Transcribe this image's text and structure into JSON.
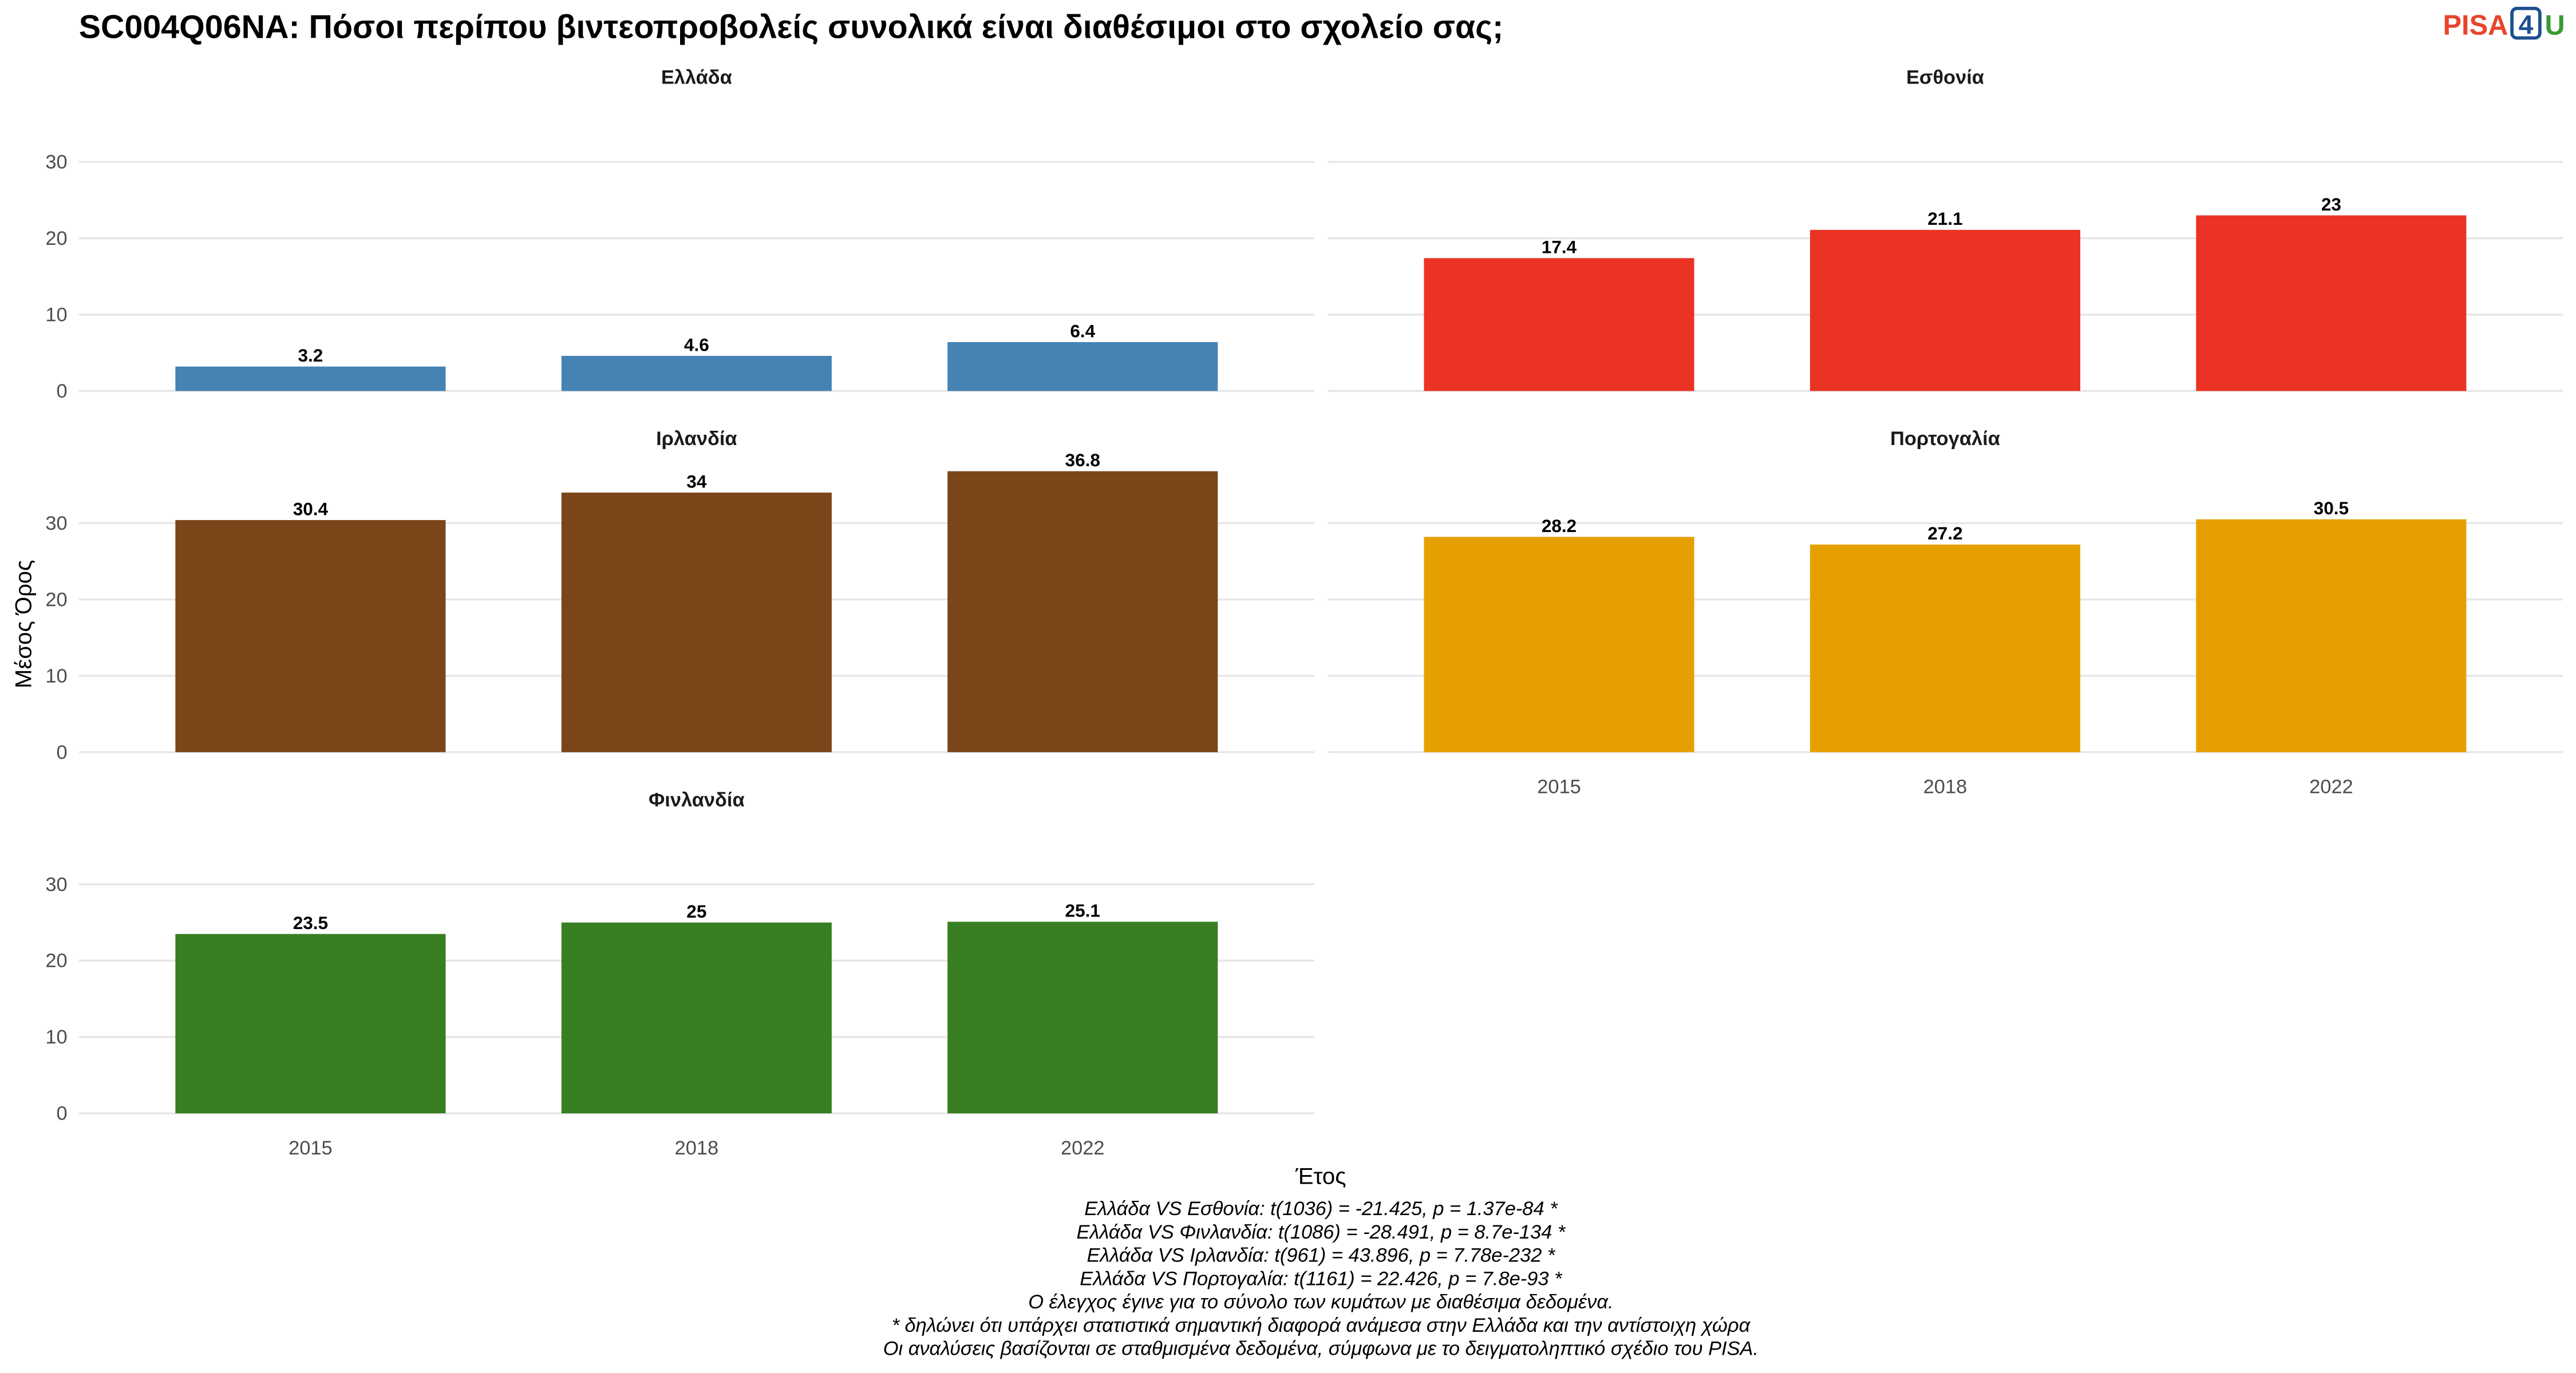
{
  "title": "SC004Q06NA: Πόσοι περίπου βιντεοπροβολείς συνολικά είναι διαθέσιμοι στο σχολείο σας;",
  "logo": {
    "part1": "PISA",
    "part2": "4",
    "part3": "U"
  },
  "y_label": "Μέσος Όρος",
  "x_label": "Έτος",
  "notes": [
    "Ελλάδα VS Εσθονία: t(1036) = -21.425, p = 1.37e-84 *",
    "Ελλάδα VS Φινλανδία: t(1086) = -28.491, p = 8.7e-134 *",
    "Ελλάδα VS Ιρλανδία: t(961) = 43.896, p = 7.78e-232 *",
    "Ελλάδα VS Πορτογαλία: t(1161) = 22.426, p = 7.8e-93 *",
    "Ο έλεγχος έγινε για το σύνολο των κυμάτων με διαθέσιμα δεδομένα.",
    "* δηλώνει ότι υπάρχει στατιστικά σημαντική διαφορά ανάμεσα στην Ελλάδα και την αντίστοιχη χώρα",
    "Οι αναλύσεις βασίζονται σε σταθμισμένα δεδομένα, σύμφωνα με το δειγματοληπτικό σχέδιο του PISA."
  ],
  "chart_data": [
    {
      "type": "bar",
      "title": "Ελλάδα",
      "categories": [
        "2015",
        "2018",
        "2022"
      ],
      "values": [
        3.2,
        4.6,
        6.4
      ],
      "color": "#4682b4",
      "ylim": [
        0,
        38.6
      ],
      "yticks": [
        0,
        10,
        20,
        30
      ],
      "grid": true
    },
    {
      "type": "bar",
      "title": "Εσθονία",
      "categories": [
        "2015",
        "2018",
        "2022"
      ],
      "values": [
        17.4,
        21.1,
        23
      ],
      "color": "#ea3324",
      "ylim": [
        0,
        38.6
      ],
      "yticks": [
        0,
        10,
        20,
        30
      ],
      "grid": true
    },
    {
      "type": "bar",
      "title": "Ιρλανδία",
      "categories": [
        "2015",
        "2018",
        "2022"
      ],
      "values": [
        30.4,
        34,
        36.8
      ],
      "color": "#7a4518",
      "ylim": [
        0,
        38.6
      ],
      "yticks": [
        0,
        10,
        20,
        30
      ],
      "grid": true
    },
    {
      "type": "bar",
      "title": "Πορτογαλία",
      "categories": [
        "2015",
        "2018",
        "2022"
      ],
      "values": [
        28.2,
        27.2,
        30.5
      ],
      "color": "#e5a000",
      "ylim": [
        0,
        38.6
      ],
      "yticks": [
        0,
        10,
        20,
        30
      ],
      "grid": true
    },
    {
      "type": "bar",
      "title": "Φινλανδία",
      "categories": [
        "2015",
        "2018",
        "2022"
      ],
      "values": [
        23.5,
        25,
        25.1
      ],
      "color": "#387f23",
      "ylim": [
        0,
        38.6
      ],
      "yticks": [
        0,
        10,
        20,
        30
      ],
      "grid": true
    }
  ]
}
